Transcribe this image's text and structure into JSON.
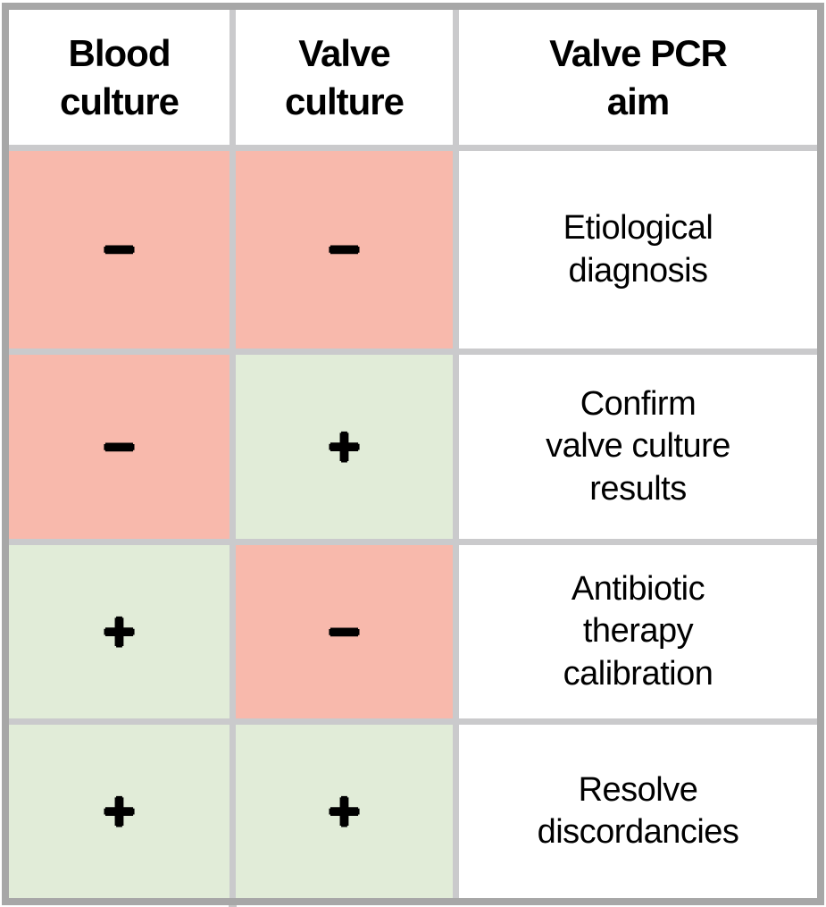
{
  "colors": {
    "negative_cell": "#F8B9AC",
    "positive_cell": "#E1ECD8",
    "grid_line": "#CACACC",
    "outer_border": "#A7A7A7",
    "text": "#000000"
  },
  "table": {
    "headers": {
      "blood": "Blood\nculture",
      "valve": "Valve\nculture",
      "aim": "Valve PCR\naim"
    },
    "rows": [
      {
        "blood": {
          "sign": "−",
          "state": "negative"
        },
        "valve": {
          "sign": "−",
          "state": "negative"
        },
        "aim": "Etiological\ndiagnosis"
      },
      {
        "blood": {
          "sign": "−",
          "state": "negative"
        },
        "valve": {
          "sign": "+",
          "state": "positive"
        },
        "aim": "Confirm\nvalve culture\nresults"
      },
      {
        "blood": {
          "sign": "+",
          "state": "positive"
        },
        "valve": {
          "sign": "−",
          "state": "negative"
        },
        "aim": "Antibiotic\ntherapy\ncalibration"
      },
      {
        "blood": {
          "sign": "+",
          "state": "positive"
        },
        "valve": {
          "sign": "+",
          "state": "positive"
        },
        "aim": "Resolve\ndiscordancies"
      }
    ]
  },
  "chart_data": {
    "type": "table",
    "columns": [
      "Blood culture",
      "Valve culture",
      "Valve PCR aim"
    ],
    "rows": [
      [
        "−",
        "−",
        "Etiological diagnosis"
      ],
      [
        "−",
        "+",
        "Confirm valve culture results"
      ],
      [
        "+",
        "−",
        "Antibiotic therapy calibration"
      ],
      [
        "+",
        "+",
        "Resolve discordancies"
      ]
    ],
    "legend": {
      "negative_color": "#F8B9AC",
      "positive_color": "#E1ECD8"
    },
    "title": ""
  }
}
